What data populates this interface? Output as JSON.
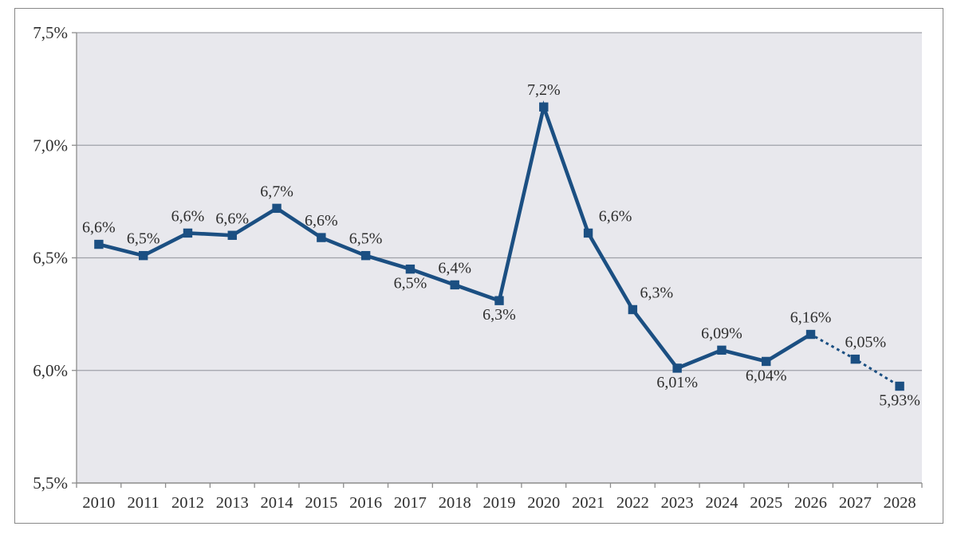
{
  "chart_data": {
    "type": "line",
    "title": "",
    "xlabel": "",
    "ylabel": "",
    "decimal_separator": ",",
    "categories": [
      "2010",
      "2011",
      "2012",
      "2013",
      "2014",
      "2015",
      "2016",
      "2017",
      "2018",
      "2019",
      "2020",
      "2021",
      "2022",
      "2023",
      "2024",
      "2025",
      "2026",
      "2027",
      "2028"
    ],
    "series": [
      {
        "name": "percentage-line",
        "values": [
          6.56,
          6.51,
          6.61,
          6.6,
          6.72,
          6.59,
          6.51,
          6.45,
          6.38,
          6.31,
          7.17,
          6.61,
          6.27,
          6.01,
          6.09,
          6.04,
          6.16,
          6.05,
          5.93
        ],
        "point_labels": [
          "6,6%",
          "6,5%",
          "6,6%",
          "6,6%",
          "6,7%",
          "6,6%",
          "6,5%",
          "6,5%",
          "6,4%",
          "6,3%",
          "7,2%",
          "6,6%",
          "6,3%",
          "6,01%",
          "6,09%",
          "6,04%",
          "6,16%",
          "6,05%",
          "5,93%"
        ],
        "label_positions": [
          "above",
          "above",
          "above",
          "above",
          "above",
          "above",
          "above",
          "below",
          "above",
          "below",
          "above",
          "above",
          "above",
          "below",
          "above",
          "below",
          "above",
          "above",
          "below"
        ],
        "label_dx": [
          0,
          0,
          0,
          0,
          0,
          0,
          0,
          0,
          0,
          0,
          0,
          34,
          30,
          0,
          0,
          0,
          0,
          13,
          0
        ],
        "dotted_from_index": 16,
        "dotted_note": "segment 2026-2028 is dotted (forecast)",
        "line_color": "#1b4f82",
        "marker": "square"
      }
    ],
    "ylim": [
      5.5,
      7.5
    ],
    "y_ticks": [
      {
        "value": 7.5,
        "label": "7,5%"
      },
      {
        "value": 7.0,
        "label": "7,0%"
      },
      {
        "value": 6.5,
        "label": "6,5%"
      },
      {
        "value": 6.0,
        "label": "6,0%"
      },
      {
        "value": 5.5,
        "label": "5,5%"
      }
    ],
    "grid": "horizontal",
    "legend": "none",
    "colors": {
      "plot_background": "#e8e8ed",
      "gridline": "#9fa1a8",
      "axis": "#8c8c8c",
      "frame_border": "#888888",
      "text": "#2e2e2e",
      "page_background": "#ffffff"
    }
  }
}
